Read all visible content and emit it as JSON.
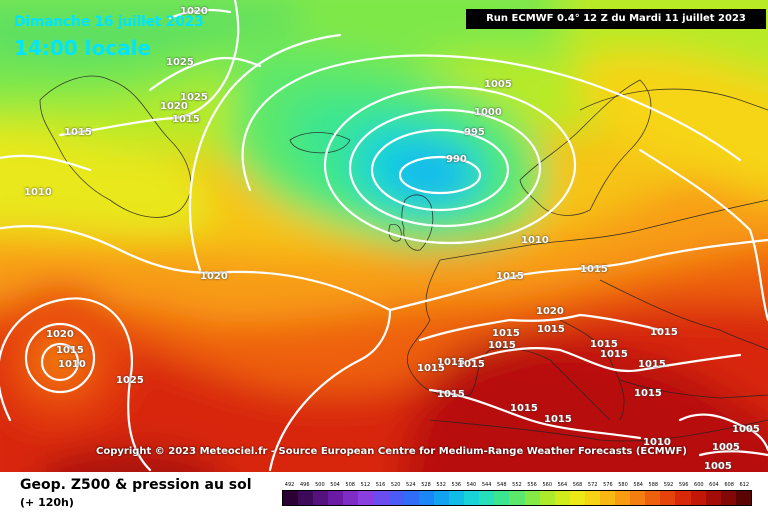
{
  "header": {
    "date": "Dimanche 16 juillet 2023",
    "time": "14:00 locale",
    "run": "Run ECMWF 0.4° 12 Z du Mardi 11 juillet 2023"
  },
  "copyright": "Copyright © 2023 Meteociel.fr - Source European Centre for Medium-Range Weather Forecasts (ECMWF)",
  "legend": {
    "product": "Geop. Z500 & pression au sol",
    "lead_time": "(+ 120h)",
    "scale": [
      {
        "value": "492",
        "color": "#2b0033"
      },
      {
        "value": "496",
        "color": "#3d0a5a"
      },
      {
        "value": "500",
        "color": "#54127e"
      },
      {
        "value": "504",
        "color": "#6a1aa3"
      },
      {
        "value": "508",
        "color": "#7d2cc4"
      },
      {
        "value": "512",
        "color": "#8a3ee0"
      },
      {
        "value": "516",
        "color": "#6b4cf0"
      },
      {
        "value": "520",
        "color": "#4a5cf5"
      },
      {
        "value": "524",
        "color": "#2e6ef7"
      },
      {
        "value": "528",
        "color": "#1a86f7"
      },
      {
        "value": "532",
        "color": "#12a2f2"
      },
      {
        "value": "536",
        "color": "#0fbde8"
      },
      {
        "value": "540",
        "color": "#18d4d8"
      },
      {
        "value": "544",
        "color": "#25e0b8"
      },
      {
        "value": "548",
        "color": "#3be690"
      },
      {
        "value": "552",
        "color": "#5ce86a"
      },
      {
        "value": "556",
        "color": "#84ea46"
      },
      {
        "value": "560",
        "color": "#abeb2c"
      },
      {
        "value": "564",
        "color": "#d0ec1c"
      },
      {
        "value": "568",
        "color": "#ece916"
      },
      {
        "value": "572",
        "color": "#f6d414"
      },
      {
        "value": "576",
        "color": "#f8b814"
      },
      {
        "value": "580",
        "color": "#f89c12"
      },
      {
        "value": "584",
        "color": "#f47e10"
      },
      {
        "value": "588",
        "color": "#ee600e"
      },
      {
        "value": "592",
        "color": "#e6420c"
      },
      {
        "value": "596",
        "color": "#d8280a"
      },
      {
        "value": "600",
        "color": "#c21608"
      },
      {
        "value": "604",
        "color": "#a40c08"
      },
      {
        "value": "608",
        "color": "#820808"
      },
      {
        "value": "612",
        "color": "#5a0404"
      }
    ]
  },
  "isobars": [
    {
      "label": "1020",
      "pos": [
        180,
        7
      ]
    },
    {
      "label": "1025",
      "pos": [
        166,
        58
      ]
    },
    {
      "label": "1025",
      "pos": [
        180,
        93
      ]
    },
    {
      "label": "1020",
      "pos": [
        160,
        102
      ]
    },
    {
      "label": "1015",
      "pos": [
        172,
        115
      ]
    },
    {
      "label": "1015",
      "pos": [
        64,
        128
      ]
    },
    {
      "label": "1010",
      "pos": [
        24,
        188
      ]
    },
    {
      "label": "1020",
      "pos": [
        200,
        272
      ]
    },
    {
      "label": "1005",
      "pos": [
        484,
        80
      ]
    },
    {
      "label": "1000",
      "pos": [
        474,
        108
      ]
    },
    {
      "label": "995",
      "pos": [
        464,
        128
      ]
    },
    {
      "label": "990",
      "pos": [
        446,
        155
      ]
    },
    {
      "label": "1010",
      "pos": [
        521,
        236
      ]
    },
    {
      "label": "1015",
      "pos": [
        496,
        272
      ]
    },
    {
      "label": "1015",
      "pos": [
        580,
        265
      ]
    },
    {
      "label": "1020",
      "pos": [
        536,
        307
      ]
    },
    {
      "label": "1015",
      "pos": [
        492,
        329
      ]
    },
    {
      "label": "1015",
      "pos": [
        537,
        325
      ]
    },
    {
      "label": "1015",
      "pos": [
        488,
        341
      ]
    },
    {
      "label": "1015",
      "pos": [
        650,
        328
      ]
    },
    {
      "label": "1015",
      "pos": [
        590,
        340
      ]
    },
    {
      "label": "1015",
      "pos": [
        600,
        350
      ]
    },
    {
      "label": "1015",
      "pos": [
        437,
        358
      ]
    },
    {
      "label": "1015",
      "pos": [
        457,
        360
      ]
    },
    {
      "label": "1015",
      "pos": [
        417,
        364
      ]
    },
    {
      "label": "1015",
      "pos": [
        638,
        360
      ]
    },
    {
      "label": "1015",
      "pos": [
        437,
        390
      ]
    },
    {
      "label": "1015",
      "pos": [
        510,
        404
      ]
    },
    {
      "label": "1015",
      "pos": [
        544,
        415
      ]
    },
    {
      "label": "1015",
      "pos": [
        634,
        389
      ]
    },
    {
      "label": "1010",
      "pos": [
        643,
        438
      ]
    },
    {
      "label": "1005",
      "pos": [
        732,
        425
      ]
    },
    {
      "label": "1005",
      "pos": [
        712,
        443
      ]
    },
    {
      "label": "1005",
      "pos": [
        704,
        462
      ]
    },
    {
      "label": "1020",
      "pos": [
        46,
        330
      ]
    },
    {
      "label": "1015",
      "pos": [
        56,
        346
      ]
    },
    {
      "label": "1010",
      "pos": [
        58,
        360
      ]
    },
    {
      "label": "1025",
      "pos": [
        116,
        376
      ]
    }
  ]
}
